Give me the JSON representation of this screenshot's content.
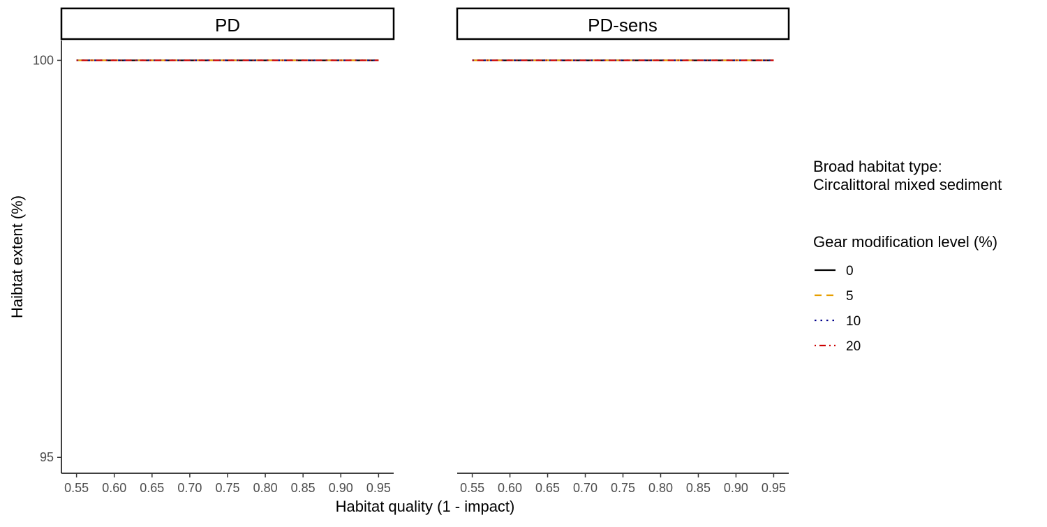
{
  "chart_data": {
    "type": "line",
    "xlabel": "Habitat quality (1 - impact)",
    "ylabel": "Haibtat extent (%)",
    "xlim": [
      0.53,
      0.97
    ],
    "ylim": [
      94.8,
      100.25
    ],
    "x_ticks": [
      "0.55",
      "0.60",
      "0.65",
      "0.70",
      "0.75",
      "0.80",
      "0.85",
      "0.90",
      "0.95"
    ],
    "y_ticks": [
      "100",
      "95"
    ],
    "grid": false,
    "legend": {
      "position": "right",
      "subtitle_line1": "Broad habitat type:",
      "subtitle_line2": "Circalittoral mixed sediment",
      "title": "Gear modification level (%)",
      "entries": [
        {
          "label": "0",
          "color": "#000000",
          "dash": "solid"
        },
        {
          "label": "5",
          "color": "#e69f00",
          "dash": "dashed"
        },
        {
          "label": "10",
          "color": "#00008b",
          "dash": "dotted"
        },
        {
          "label": "20",
          "color": "#cc0000",
          "dash": "dotdash"
        }
      ]
    },
    "panels": [
      {
        "title": "PD",
        "series": [
          {
            "name": "0",
            "x": [
              0.55,
              0.95
            ],
            "y": [
              100,
              100
            ]
          },
          {
            "name": "5",
            "x": [
              0.55,
              0.95
            ],
            "y": [
              100,
              100
            ]
          },
          {
            "name": "10",
            "x": [
              0.55,
              0.95
            ],
            "y": [
              100,
              100
            ]
          },
          {
            "name": "20",
            "x": [
              0.55,
              0.95
            ],
            "y": [
              100,
              100
            ]
          }
        ]
      },
      {
        "title": "PD-sens",
        "series": [
          {
            "name": "0",
            "x": [
              0.55,
              0.95
            ],
            "y": [
              100,
              100
            ]
          },
          {
            "name": "5",
            "x": [
              0.55,
              0.95
            ],
            "y": [
              100,
              100
            ]
          },
          {
            "name": "10",
            "x": [
              0.55,
              0.95
            ],
            "y": [
              100,
              100
            ]
          },
          {
            "name": "20",
            "x": [
              0.55,
              0.95
            ],
            "y": [
              100,
              100
            ]
          }
        ]
      }
    ]
  }
}
